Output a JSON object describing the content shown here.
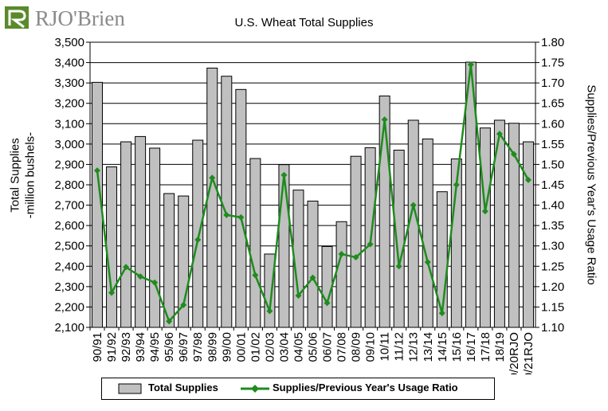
{
  "logo": {
    "text": "RJO'Brien",
    "mark_color": "#5a8a2c"
  },
  "chart_data": {
    "type": "bar+line",
    "title": "U.S. Wheat Total Supplies",
    "categories": [
      "90/91",
      "91/92",
      "92/93",
      "93/94",
      "94/95",
      "95/96",
      "96/97",
      "97/98",
      "98/99",
      "99/00",
      "00/01",
      "01/02",
      "02/03",
      "03/04",
      "04/05",
      "05/06",
      "06/07",
      "07/08",
      "08/09",
      "09/10",
      "10/11",
      "11/12",
      "12/13",
      "13/14",
      "14/15",
      "15/16",
      "16/17",
      "17/18",
      "18/19",
      "19/20RJO",
      "20/21RJO"
    ],
    "series": [
      {
        "name": "Total Supplies",
        "axis": "left",
        "type": "bar",
        "color": "#c0c0c0",
        "values": [
          3303,
          2888,
          3011,
          3037,
          2980,
          2757,
          2745,
          3019,
          3373,
          3333,
          3268,
          2929,
          2460,
          2899,
          2774,
          2720,
          2497,
          2619,
          2940,
          2982,
          3236,
          2970,
          3117,
          3025,
          2766,
          2927,
          3402,
          3079,
          3117,
          3102,
          3011
        ]
      },
      {
        "name": "Supplies/Previous Year's Usage Ratio",
        "axis": "right",
        "type": "line",
        "color": "#1e8c1e",
        "values": [
          1.485,
          1.185,
          1.248,
          1.225,
          1.21,
          1.115,
          1.155,
          1.315,
          1.467,
          1.376,
          1.37,
          1.228,
          1.14,
          1.474,
          1.178,
          1.222,
          1.16,
          1.28,
          1.272,
          1.304,
          1.61,
          1.25,
          1.4,
          1.26,
          1.135,
          1.45,
          1.745,
          1.385,
          1.575,
          1.525,
          1.462
        ]
      }
    ],
    "ylabel_left": [
      "Total Supplies",
      "-million bushels-"
    ],
    "ylabel_right": "Supplies/Previous Year's Usage Ratio",
    "ylim_left": [
      2100,
      3500
    ],
    "ylim_right": [
      1.1,
      1.8
    ],
    "yticks_left": [
      "2,100",
      "2,200",
      "2,300",
      "2,400",
      "2,500",
      "2,600",
      "2,700",
      "2,800",
      "2,900",
      "3,000",
      "3,100",
      "3,200",
      "3,300",
      "3,400",
      "3,500"
    ],
    "yticks_right": [
      "1.10",
      "1.15",
      "1.20",
      "1.25",
      "1.30",
      "1.35",
      "1.40",
      "1.45",
      "1.50",
      "1.55",
      "1.60",
      "1.65",
      "1.70",
      "1.75",
      "1.80"
    ],
    "grid": true,
    "legend_position": "bottom"
  }
}
